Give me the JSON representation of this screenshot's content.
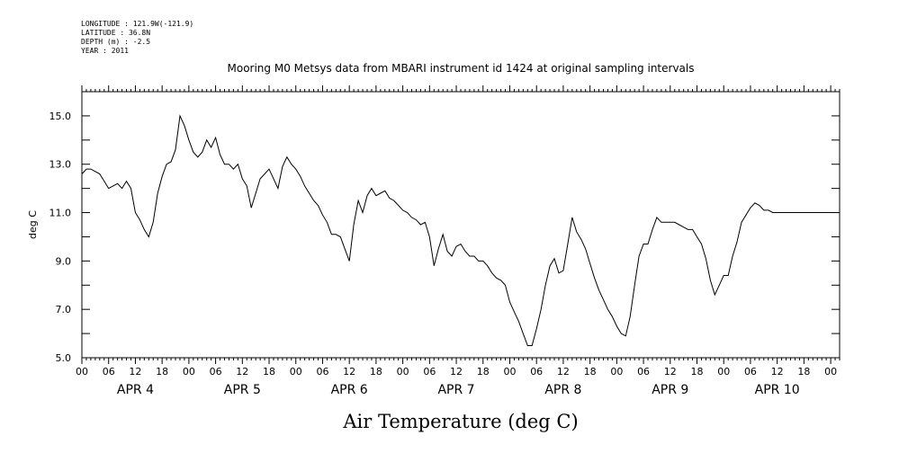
{
  "meta": {
    "longitude": "LONGITUDE : 121.9W(-121.9)",
    "latitude": "LATITUDE : 36.8N",
    "depth": "DEPTH (m) : -2.5",
    "year": "YEAR : 2011"
  },
  "chart_data": {
    "type": "line",
    "title": "Mooring M0 Metsys data from MBARI instrument id 1424 at original sampling intervals",
    "xlabel": "Air Temperature (deg C)",
    "ylabel": "deg C",
    "ylim": [
      5.0,
      16.0
    ],
    "xlim_hours": [
      0,
      170
    ],
    "y_ticks": [
      "5.0",
      "7.0",
      "9.0",
      "11.0",
      "13.0",
      "15.0"
    ],
    "y_tick_values": [
      5,
      7,
      9,
      11,
      13,
      15
    ],
    "hour_tick_labels": [
      "00",
      "06",
      "12",
      "18",
      "00",
      "06",
      "12",
      "18",
      "00",
      "06",
      "12",
      "18",
      "00",
      "06",
      "12",
      "18",
      "00",
      "06",
      "12",
      "18",
      "00",
      "06",
      "12",
      "18",
      "00",
      "06",
      "12",
      "18",
      "00"
    ],
    "day_labels": [
      "APR  4",
      "APR  5",
      "APR  6",
      "APR  7",
      "APR  8",
      "APR  9",
      "APR 10"
    ],
    "grid": false,
    "series": [
      {
        "x": [
          0,
          1,
          2,
          3,
          4,
          5,
          6,
          7,
          8,
          9,
          10,
          11,
          12,
          13,
          14,
          15,
          16,
          17,
          18,
          19,
          20,
          21,
          22,
          23,
          24,
          25,
          26,
          27,
          28,
          29,
          30,
          31,
          32,
          33,
          34,
          35,
          36,
          37,
          38,
          39,
          40,
          41,
          42,
          43,
          44,
          45,
          46,
          47,
          48,
          49,
          50,
          51,
          52,
          53,
          54,
          55,
          56,
          57,
          58,
          59,
          60,
          61,
          62,
          63,
          64,
          65,
          66,
          67,
          68,
          69,
          70,
          71,
          72,
          73,
          74,
          75,
          76,
          77,
          78,
          79,
          80,
          81,
          82,
          83,
          84,
          85,
          86,
          87,
          88,
          89,
          90,
          91,
          92,
          93,
          94,
          95,
          96,
          97,
          98,
          99,
          100,
          101,
          102,
          103,
          104,
          105,
          106,
          107,
          108,
          109,
          110,
          111,
          112,
          113,
          114,
          115,
          116,
          117,
          118,
          119,
          120,
          121,
          122,
          123,
          124,
          125,
          126,
          127,
          128,
          129,
          130,
          131,
          132,
          133,
          134,
          135,
          136,
          137,
          138,
          139,
          140,
          141,
          142,
          143,
          144,
          145,
          146,
          147,
          148,
          149,
          150,
          151,
          152,
          153,
          154,
          155,
          156,
          157,
          158,
          159,
          160,
          161,
          162,
          163,
          164,
          165,
          166,
          167,
          168,
          169,
          170
        ],
        "y": [
          12.6,
          12.8,
          12.8,
          12.7,
          12.6,
          12.3,
          12.0,
          12.1,
          12.2,
          12.0,
          12.3,
          12.0,
          11.0,
          10.7,
          10.3,
          10.0,
          10.6,
          11.8,
          12.5,
          13.0,
          13.1,
          13.6,
          15.0,
          14.6,
          14.0,
          13.5,
          13.3,
          13.5,
          14.0,
          13.7,
          14.1,
          13.4,
          13.0,
          13.0,
          12.8,
          13.0,
          12.4,
          12.1,
          11.2,
          11.8,
          12.4,
          12.6,
          12.8,
          12.4,
          12.0,
          12.9,
          13.3,
          13.0,
          12.8,
          12.5,
          12.1,
          11.8,
          11.5,
          11.3,
          10.9,
          10.6,
          10.1,
          10.1,
          10.0,
          9.5,
          9.0,
          10.5,
          11.5,
          11.0,
          11.7,
          12.0,
          11.7,
          11.8,
          11.9,
          11.6,
          11.5,
          11.3,
          11.1,
          11.0,
          10.8,
          10.7,
          10.5,
          10.6,
          10.0,
          8.8,
          9.5,
          10.1,
          9.4,
          9.2,
          9.6,
          9.7,
          9.4,
          9.2,
          9.2,
          9.0,
          9.0,
          8.8,
          8.5,
          8.3,
          8.2,
          8.0,
          7.3,
          6.9,
          6.5,
          6.0,
          5.5,
          5.5,
          6.2,
          7.0,
          8.0,
          8.8,
          9.1,
          8.5,
          8.6,
          9.7,
          10.8,
          10.2,
          9.9,
          9.5,
          8.9,
          8.3,
          7.8,
          7.4,
          7.0,
          6.7,
          6.3,
          6.0,
          5.9,
          6.7,
          8.0,
          9.2,
          9.7,
          9.7,
          10.3,
          10.8,
          10.6,
          10.6,
          10.6,
          10.6,
          10.5,
          10.4,
          10.3,
          10.3,
          10.0,
          9.7,
          9.1,
          8.2,
          7.6,
          8.0,
          8.4,
          8.4,
          9.2,
          9.8,
          10.6,
          10.9,
          11.2,
          11.4,
          11.3,
          11.1,
          11.1,
          11.0,
          11.0,
          11.0,
          11.0,
          11.0,
          11.0,
          11.0,
          11.0,
          11.0,
          11.0,
          11.0,
          11.0,
          11.0,
          11.0,
          11.0,
          11.0
        ]
      }
    ]
  }
}
